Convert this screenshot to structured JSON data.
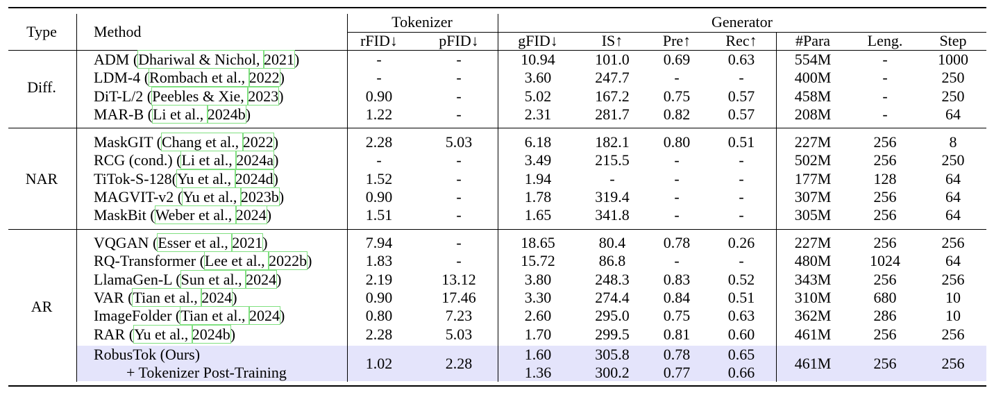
{
  "header": {
    "type": "Type",
    "method": "Method",
    "tokenizer": "Tokenizer",
    "generator": "Generator",
    "cols": [
      "rFID↓",
      "pFID↓",
      "gFID↓",
      "IS↑",
      "Pre↑",
      "Rec↑",
      "#Para",
      "Leng.",
      "Step"
    ]
  },
  "groups": [
    {
      "type": "Diff.",
      "rows": [
        {
          "method": "ADM ",
          "cite": [
            [
              "Dhariwal & Nichol, ",
              "2021"
            ]
          ],
          "rfid": "-",
          "pfid": "-",
          "gfid": "10.94",
          "is": "101.0",
          "pre": "0.69",
          "rec": "0.63",
          "para": "554M",
          "leng": "-",
          "step": "1000"
        },
        {
          "method": "LDM-4 ",
          "cite": [
            [
              "Rombach et al., ",
              "2022"
            ]
          ],
          "rfid": "-",
          "pfid": "-",
          "gfid": "3.60",
          "is": "247.7",
          "pre": "-",
          "rec": "-",
          "para": "400M",
          "leng": "-",
          "step": "250"
        },
        {
          "method": "DiT-L/2 ",
          "cite": [
            [
              "Peebles & Xie, ",
              "2023"
            ]
          ],
          "rfid": "0.90",
          "pfid": "-",
          "gfid": "5.02",
          "is": "167.2",
          "pre": "0.75",
          "rec": "0.57",
          "para": "458M",
          "leng": "-",
          "step": "250"
        },
        {
          "method": "MAR-B ",
          "cite": [
            [
              "Li et al., ",
              "2024b"
            ]
          ],
          "rfid": "1.22",
          "pfid": "-",
          "gfid": "2.31",
          "is": "281.7",
          "pre": "0.82",
          "rec": "0.57",
          "para": "208M",
          "leng": "-",
          "step": "64"
        }
      ]
    },
    {
      "type": "NAR",
      "rows": [
        {
          "method": "MaskGIT ",
          "cite": [
            [
              "Chang et al., ",
              "2022"
            ]
          ],
          "rfid": "2.28",
          "pfid": "5.03",
          "gfid": "6.18",
          "is": "182.1",
          "pre": "0.80",
          "rec": "0.51",
          "para": "227M",
          "leng": "256",
          "step": "8"
        },
        {
          "method": "RCG (cond.) ",
          "cite": [
            [
              "Li et al., ",
              "2024a"
            ]
          ],
          "rfid": "-",
          "pfid": "-",
          "gfid": "3.49",
          "is": "215.5",
          "pre": "-",
          "rec": "-",
          "para": "502M",
          "leng": "256",
          "step": "250"
        },
        {
          "method": "TiTok-S-128",
          "cite": [
            [
              "Yu et al., ",
              "2024d"
            ]
          ],
          "rfid": "1.52",
          "pfid": "-",
          "gfid": "1.94",
          "is": "-",
          "pre": "-",
          "rec": "-",
          "para": "177M",
          "leng": "128",
          "step": "64"
        },
        {
          "method": "MAGVIT-v2 ",
          "cite": [
            [
              "Yu et al., ",
              "2023b"
            ]
          ],
          "rfid": "0.90",
          "pfid": "-",
          "gfid": "1.78",
          "is": "319.4",
          "pre": "-",
          "rec": "-",
          "para": "307M",
          "leng": "256",
          "step": "64"
        },
        {
          "method": "MaskBit ",
          "cite": [
            [
              "Weber et al., ",
              "2024"
            ]
          ],
          "rfid": "1.51",
          "pfid": "-",
          "gfid": "1.65",
          "is": "341.8",
          "pre": "-",
          "rec": "-",
          "para": "305M",
          "leng": "256",
          "step": "64"
        }
      ]
    },
    {
      "type": "AR",
      "rows": [
        {
          "method": "VQGAN ",
          "cite": [
            [
              "Esser et al., ",
              "2021"
            ]
          ],
          "rfid": "7.94",
          "pfid": "-",
          "gfid": "18.65",
          "is": "80.4",
          "pre": "0.78",
          "rec": "0.26",
          "para": "227M",
          "leng": "256",
          "step": "256"
        },
        {
          "method": "RQ-Transformer ",
          "cite": [
            [
              "Lee et al., ",
              "2022b"
            ]
          ],
          "rfid": "1.83",
          "pfid": "-",
          "gfid": "15.72",
          "is": "86.8",
          "pre": "-",
          "rec": "-",
          "para": "480M",
          "leng": "1024",
          "step": "64"
        },
        {
          "method": "LlamaGen-L ",
          "cite": [
            [
              "Sun et al., ",
              "2024"
            ]
          ],
          "rfid": "2.19",
          "pfid": "13.12",
          "gfid": "3.80",
          "is": "248.3",
          "pre": "0.83",
          "rec": "0.52",
          "para": "343M",
          "leng": "256",
          "step": "256"
        },
        {
          "method": "VAR ",
          "cite": [
            [
              "Tian et al., ",
              "2024"
            ]
          ],
          "rfid": "0.90",
          "pfid": "17.46",
          "gfid": "3.30",
          "is": "274.4",
          "pre": "0.84",
          "rec": "0.51",
          "para": "310M",
          "leng": "680",
          "step": "10"
        },
        {
          "method": "ImageFolder ",
          "cite": [
            [
              "Tian et al., ",
              "2024"
            ]
          ],
          "rfid": "0.80",
          "pfid": "7.23",
          "gfid": "2.60",
          "is": "295.0",
          "pre": "0.75",
          "rec": "0.63",
          "para": "362M",
          "leng": "286",
          "step": "10"
        },
        {
          "method": "RAR ",
          "cite": [
            [
              "Yu et al., ",
              "2024b"
            ]
          ],
          "rfid": "2.28",
          "pfid": "5.03",
          "gfid": "1.70",
          "is": "299.5",
          "pre": "0.81",
          "rec": "0.60",
          "para": "461M",
          "leng": "256",
          "step": "256"
        }
      ]
    }
  ],
  "ours": {
    "method": "RobusTok (Ours)",
    "method2": "+ Tokenizer Post-Training",
    "rfid": "1.02",
    "pfid": "2.28",
    "gfid": [
      "1.60",
      "1.36"
    ],
    "is": [
      "305.8",
      "300.2"
    ],
    "pre": [
      "0.78",
      "0.77"
    ],
    "rec": [
      "0.65",
      "0.66"
    ],
    "para": "461M",
    "leng": "256",
    "step": "256"
  },
  "colors": {
    "highlight": "#e4e4fb",
    "cite_box": "#7fe07f",
    "rule": "#000000"
  }
}
